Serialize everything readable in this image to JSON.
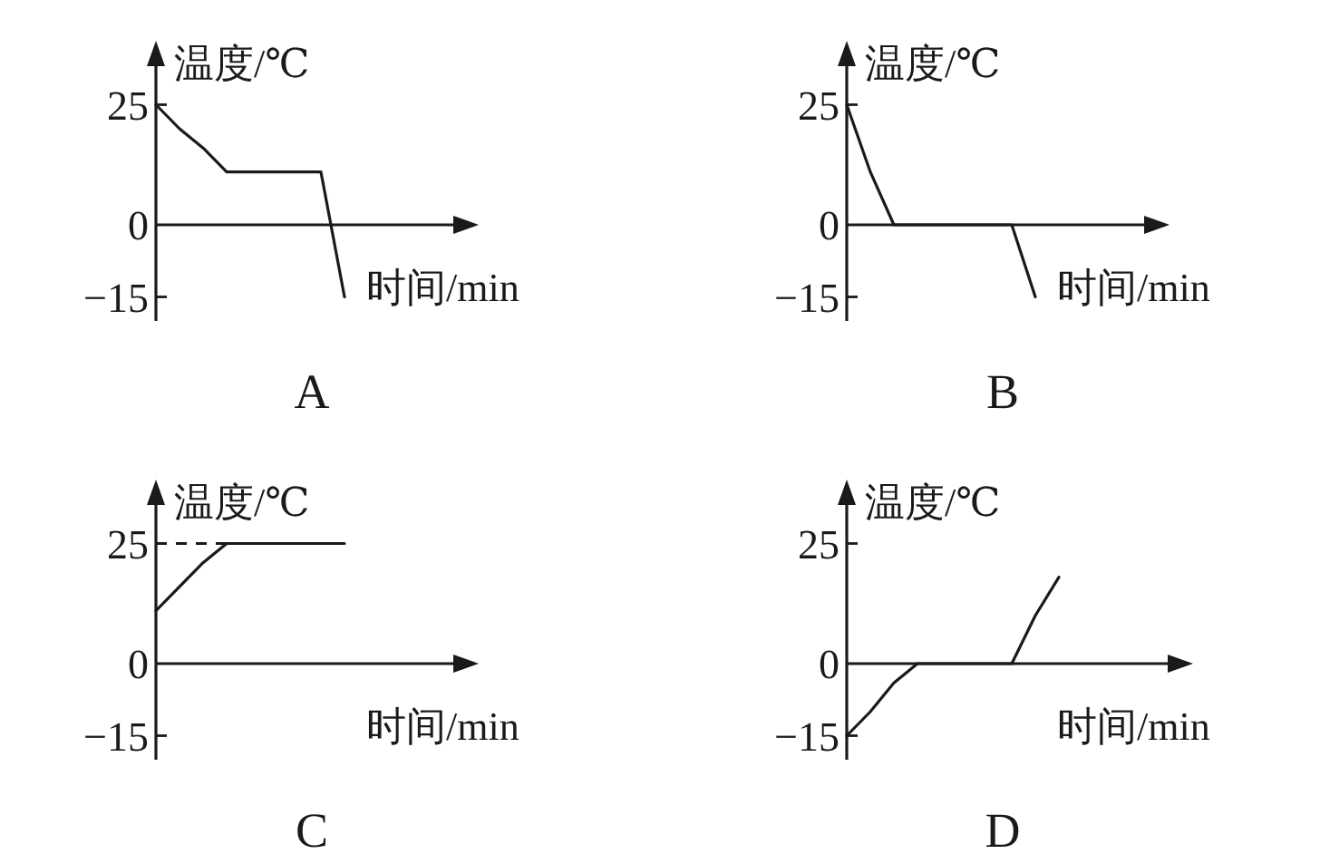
{
  "chart_data": [
    {
      "type": "line",
      "title": "A",
      "xlabel": "时间/min",
      "ylabel": "温度/℃",
      "categories": [
        null,
        null,
        null,
        null,
        null,
        null,
        null,
        null,
        null
      ],
      "values": [
        25,
        20,
        16,
        11,
        11,
        11,
        11,
        11,
        -15
      ],
      "color": "#1a1a1a",
      "ylim": [
        -20,
        33
      ],
      "yticks": [
        25,
        0,
        -15
      ],
      "tick_labels": "y"
    },
    {
      "type": "line",
      "title": "B",
      "xlabel": "时间/min",
      "ylabel": "温度/℃",
      "categories": [
        null,
        null,
        null,
        null,
        null,
        null,
        null,
        null,
        null
      ],
      "values": [
        25,
        11,
        0,
        0,
        0,
        0,
        0,
        0,
        -15
      ],
      "color": "#1a1a1a",
      "ylim": [
        -20,
        33
      ],
      "yticks": [
        25,
        0,
        -15
      ],
      "tick_labels": "y"
    },
    {
      "type": "line",
      "title": "C",
      "xlabel": "时间/min",
      "ylabel": "温度/℃",
      "categories": [
        null,
        null,
        null,
        null,
        null,
        null,
        null,
        null,
        null
      ],
      "values": [
        11,
        16,
        21,
        25,
        25,
        25,
        25,
        25,
        25
      ],
      "color": "#1a1a1a",
      "ylim": [
        -20,
        33
      ],
      "yticks": [
        25,
        0,
        -15
      ],
      "tick_labels": "y",
      "ref_lines": [
        {
          "axis": "y",
          "value": 25,
          "line_style": "dashed"
        }
      ]
    },
    {
      "type": "line",
      "title": "D",
      "xlabel": "时间/min",
      "ylabel": "温度/℃",
      "categories": [
        null,
        null,
        null,
        null,
        null,
        null,
        null,
        null,
        null,
        null
      ],
      "values": [
        -15,
        -10,
        -4,
        0,
        0,
        0,
        0,
        0,
        10,
        18
      ],
      "color": "#1a1a1a",
      "ylim": [
        -20,
        33
      ],
      "yticks": [
        25,
        0,
        -15
      ],
      "tick_labels": "y"
    }
  ]
}
